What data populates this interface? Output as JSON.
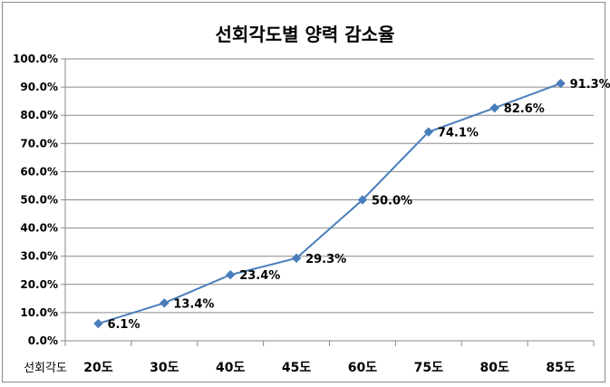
{
  "chart_data": {
    "type": "line",
    "title": "선회각도별 양력 감소율",
    "xlabel": "선회각도",
    "ylabel": "",
    "categories": [
      "20도",
      "30도",
      "40도",
      "45도",
      "60도",
      "75도",
      "80도",
      "85도"
    ],
    "values": [
      6.1,
      13.4,
      23.4,
      29.3,
      50.0,
      74.1,
      82.6,
      91.3
    ],
    "data_labels": [
      "6.1%",
      "13.4%",
      "23.4%",
      "29.3%",
      "50.0%",
      "74.1%",
      "82.6%",
      "91.3%"
    ],
    "ylim": [
      0,
      100
    ],
    "y_ticks": [
      "0.0%",
      "10.0%",
      "20.0%",
      "30.0%",
      "40.0%",
      "50.0%",
      "60.0%",
      "70.0%",
      "80.0%",
      "90.0%",
      "100.0%"
    ],
    "grid": true,
    "legend": "none",
    "colors": {
      "series": "#4a7ebb",
      "grid": "#8a8a8a",
      "axis": "#8a8a8a"
    }
  }
}
